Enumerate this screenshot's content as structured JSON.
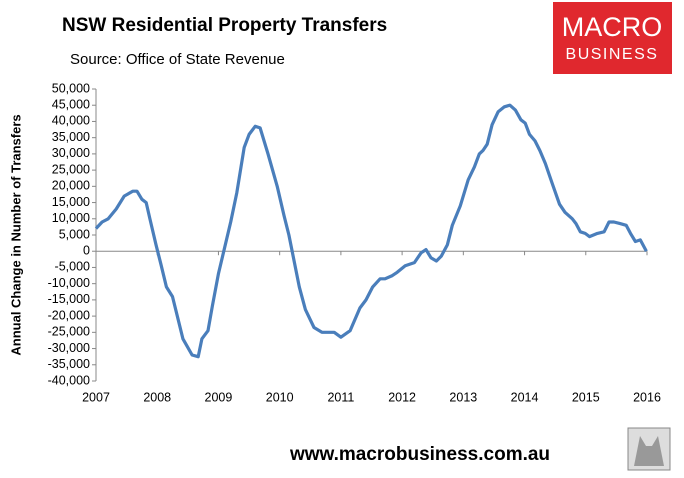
{
  "chart_data": {
    "type": "line",
    "title": "NSW Residential Property Transfers",
    "subtitle": "Source: Office of State Revenue",
    "y_label": "Annual Change in Number of Transfers",
    "color": "#4a7ebb",
    "x": [
      2007.0,
      2007.1,
      2007.2,
      2007.33,
      2007.46,
      2007.6,
      2007.67,
      2007.75,
      2007.82,
      2007.88,
      2007.98,
      2008.06,
      2008.15,
      2008.25,
      2008.42,
      2008.57,
      2008.67,
      2008.73,
      2008.83,
      2008.9,
      2009.0,
      2009.2,
      2009.3,
      2009.42,
      2009.5,
      2009.6,
      2009.68,
      2009.81,
      2009.96,
      2010.07,
      2010.15,
      2010.32,
      2010.42,
      2010.56,
      2010.69,
      2010.89,
      2011.0,
      2011.15,
      2011.23,
      2011.31,
      2011.41,
      2011.52,
      2011.64,
      2011.72,
      2011.84,
      2011.92,
      2012.05,
      2012.2,
      2012.31,
      2012.39,
      2012.47,
      2012.56,
      2012.64,
      2012.74,
      2012.82,
      2012.95,
      2013.08,
      2013.18,
      2013.26,
      2013.32,
      2013.39,
      2013.47,
      2013.57,
      2013.67,
      2013.76,
      2013.85,
      2013.94,
      2014.01,
      2014.08,
      2014.17,
      2014.25,
      2014.34,
      2014.45,
      2014.57,
      2014.66,
      2014.78,
      2014.84,
      2014.91,
      2014.99,
      2015.06,
      2015.19,
      2015.3,
      2015.38,
      2015.46,
      2015.56,
      2015.66,
      2015.73,
      2015.81,
      2015.89,
      2015.99
    ],
    "values": [
      7000,
      9000,
      10000,
      13000,
      17000,
      18500,
      18500,
      16000,
      15000,
      10000,
      2000,
      -4000,
      -11000,
      -14000,
      -27000,
      -32000,
      -32500,
      -27000,
      -24500,
      -17000,
      -7000,
      9000,
      18000,
      32000,
      36000,
      38500,
      38000,
      30000,
      20000,
      11000,
      5000,
      -11000,
      -18000,
      -23500,
      -25000,
      -25000,
      -26500,
      -24500,
      -21000,
      -17500,
      -15000,
      -11000,
      -8500,
      -8500,
      -7500,
      -6500,
      -4500,
      -3500,
      -500,
      500,
      -2000,
      -3000,
      -1500,
      2000,
      8000,
      14000,
      22000,
      26000,
      30000,
      31000,
      33000,
      39000,
      43000,
      44500,
      45000,
      43500,
      40500,
      39500,
      36000,
      34000,
      31000,
      27000,
      21000,
      14500,
      12000,
      10000,
      8500,
      6000,
      5500,
      4500,
      5500,
      6000,
      9000,
      9000,
      8500,
      8000,
      5500,
      3000,
      3500,
      0
    ],
    "xlim": [
      2007,
      2016
    ],
    "xticks": [
      2007,
      2008,
      2009,
      2010,
      2011,
      2012,
      2013,
      2014,
      2015,
      2016
    ],
    "ylim": [
      -40000,
      50000
    ],
    "yticks": [
      {
        "value": 50000,
        "label": "50,000"
      },
      {
        "value": 45000,
        "label": "45,000"
      },
      {
        "value": 40000,
        "label": "40,000"
      },
      {
        "value": 35000,
        "label": "35,000"
      },
      {
        "value": 30000,
        "label": "30,000"
      },
      {
        "value": 25000,
        "label": "25,000"
      },
      {
        "value": 20000,
        "label": "20,000"
      },
      {
        "value": 15000,
        "label": "15,000"
      },
      {
        "value": 10000,
        "label": "10,000"
      },
      {
        "value": 5000,
        "label": "5,000"
      },
      0,
      {
        "value": -5000,
        "label": "-5,000"
      },
      {
        "value": -10000,
        "label": "-10,000"
      },
      {
        "value": -15000,
        "label": "-15,000"
      },
      {
        "value": -20000,
        "label": "-20,000"
      },
      {
        "value": -25000,
        "label": "-25,000"
      },
      {
        "value": -30000,
        "label": "-30,000"
      },
      {
        "value": -35000,
        "label": "-35,000"
      },
      {
        "value": -40000,
        "label": "-40,000"
      }
    ],
    "grid": false
  },
  "logo": {
    "line1": "MACRO",
    "line2": "BUSINESS"
  },
  "footer": "www.macrobusiness.com.au"
}
